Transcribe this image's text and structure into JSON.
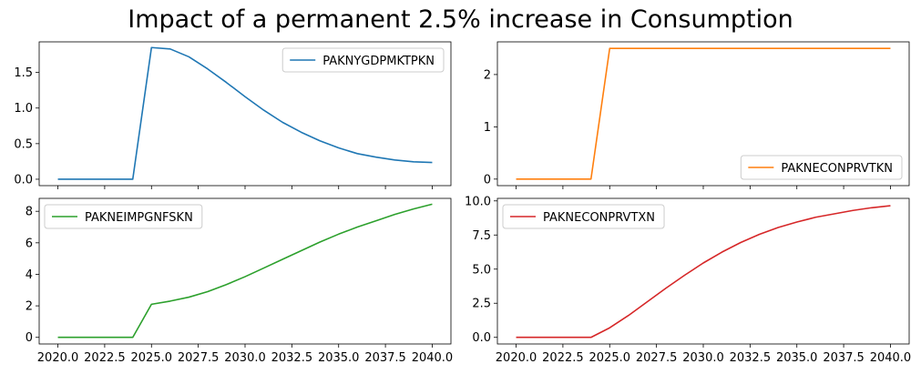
{
  "figure": {
    "title": "Impact of a permanent 2.5% increase in Consumption"
  },
  "chart_data": [
    {
      "type": "line",
      "ylim": [
        -0.09,
        1.93
      ],
      "yticks": [
        0.0,
        0.5,
        1.0,
        1.5
      ],
      "ytick_labels": [
        "0.0",
        "0.5",
        "1.0",
        "1.5"
      ],
      "xlim": [
        2019,
        2041
      ],
      "xticks": [
        2020,
        2022.5,
        2025,
        2027.5,
        2030,
        2032.5,
        2035,
        2037.5,
        2040
      ],
      "xtick_labels": [],
      "legend_position": "top-right",
      "grid": false,
      "series": [
        {
          "name": "PAKNYGDPMKTPKN",
          "color": "#1f77b4",
          "x": [
            2020,
            2021,
            2022,
            2023,
            2024,
            2025,
            2026,
            2027,
            2028,
            2029,
            2030,
            2031,
            2032,
            2033,
            2034,
            2035,
            2036,
            2037,
            2038,
            2039,
            2040
          ],
          "values": [
            0,
            0,
            0,
            0,
            0,
            1.85,
            1.83,
            1.72,
            1.55,
            1.36,
            1.16,
            0.97,
            0.8,
            0.66,
            0.54,
            0.44,
            0.36,
            0.31,
            0.27,
            0.245,
            0.235
          ]
        }
      ]
    },
    {
      "type": "line",
      "ylim": [
        -0.125,
        2.625
      ],
      "yticks": [
        0,
        1,
        2
      ],
      "ytick_labels": [
        "0",
        "1",
        "2"
      ],
      "xlim": [
        2019,
        2041
      ],
      "xticks": [
        2020,
        2022.5,
        2025,
        2027.5,
        2030,
        2032.5,
        2035,
        2037.5,
        2040
      ],
      "xtick_labels": [],
      "legend_position": "bottom-right",
      "grid": false,
      "series": [
        {
          "name": "PAKNECONPRVTKN",
          "color": "#ff7f0e",
          "x": [
            2020,
            2021,
            2022,
            2023,
            2024,
            2025,
            2026,
            2027,
            2028,
            2029,
            2030,
            2031,
            2032,
            2033,
            2034,
            2035,
            2036,
            2037,
            2038,
            2039,
            2040
          ],
          "values": [
            0,
            0,
            0,
            0,
            0,
            2.5,
            2.5,
            2.5,
            2.5,
            2.5,
            2.5,
            2.5,
            2.5,
            2.5,
            2.5,
            2.5,
            2.5,
            2.5,
            2.5,
            2.5,
            2.5
          ]
        }
      ]
    },
    {
      "type": "line",
      "ylim": [
        -0.42,
        8.82
      ],
      "yticks": [
        0,
        2,
        4,
        6,
        8
      ],
      "ytick_labels": [
        "0",
        "2",
        "4",
        "6",
        "8"
      ],
      "xlim": [
        2019,
        2041
      ],
      "xticks": [
        2020,
        2022.5,
        2025,
        2027.5,
        2030,
        2032.5,
        2035,
        2037.5,
        2040
      ],
      "xtick_labels": [
        "2020.0",
        "2022.5",
        "2025.0",
        "2027.5",
        "2030.0",
        "2032.5",
        "2035.0",
        "2037.5",
        "2040.0"
      ],
      "legend_position": "top-left",
      "grid": false,
      "series": [
        {
          "name": "PAKNEIMPGNFSKN",
          "color": "#2ca02c",
          "x": [
            2020,
            2021,
            2022,
            2023,
            2024,
            2025,
            2026,
            2027,
            2028,
            2029,
            2030,
            2031,
            2032,
            2033,
            2034,
            2035,
            2036,
            2037,
            2038,
            2039,
            2040
          ],
          "values": [
            0,
            0,
            0,
            0,
            0,
            2.1,
            2.3,
            2.55,
            2.9,
            3.35,
            3.85,
            4.4,
            4.95,
            5.5,
            6.05,
            6.55,
            7.0,
            7.4,
            7.8,
            8.15,
            8.45
          ]
        }
      ]
    },
    {
      "type": "line",
      "ylim": [
        -0.485,
        10.185
      ],
      "yticks": [
        0.0,
        2.5,
        5.0,
        7.5,
        10.0
      ],
      "ytick_labels": [
        "0.0",
        "2.5",
        "5.0",
        "7.5",
        "10.0"
      ],
      "xlim": [
        2019,
        2041
      ],
      "xticks": [
        2020,
        2022.5,
        2025,
        2027.5,
        2030,
        2032.5,
        2035,
        2037.5,
        2040
      ],
      "xtick_labels": [
        "2020.0",
        "2022.5",
        "2025.0",
        "2027.5",
        "2030.0",
        "2032.5",
        "2035.0",
        "2037.5",
        "2040.0"
      ],
      "legend_position": "top-left",
      "grid": false,
      "series": [
        {
          "name": "PAKNECONPRVTXN",
          "color": "#d62728",
          "x": [
            2020,
            2021,
            2022,
            2023,
            2024,
            2025,
            2026,
            2027,
            2028,
            2029,
            2030,
            2031,
            2032,
            2033,
            2034,
            2035,
            2036,
            2037,
            2038,
            2039,
            2040
          ],
          "values": [
            0,
            0,
            0,
            0,
            0,
            0.7,
            1.6,
            2.6,
            3.6,
            4.55,
            5.45,
            6.25,
            6.95,
            7.55,
            8.05,
            8.45,
            8.8,
            9.05,
            9.3,
            9.5,
            9.65
          ]
        }
      ]
    }
  ]
}
